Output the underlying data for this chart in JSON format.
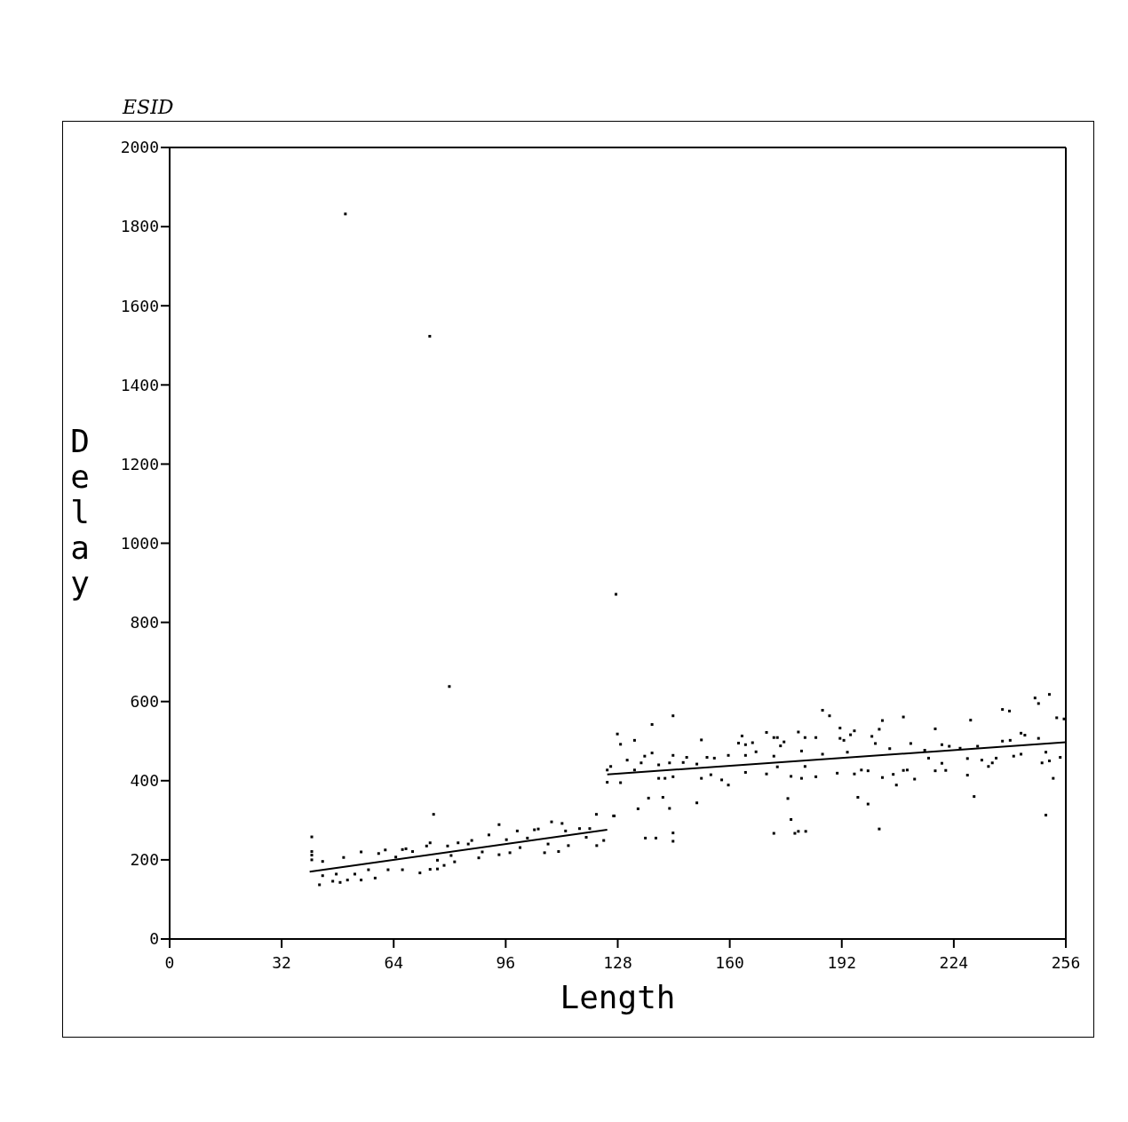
{
  "chart_data": {
    "type": "scatter",
    "title": "ESID",
    "xlabel": "Length",
    "ylabel": "Delay",
    "xlim": [
      0,
      256
    ],
    "ylim": [
      0,
      2000
    ],
    "xticks": [
      0,
      32,
      64,
      96,
      128,
      160,
      192,
      224,
      256
    ],
    "yticks": [
      0,
      200,
      400,
      600,
      800,
      1000,
      1200,
      1400,
      1600,
      1800,
      2000
    ],
    "series": [
      {
        "color": "#000000",
        "marker": "square",
        "x": [
          40.6,
          40.6,
          40.6,
          40.6,
          42.8,
          43.7,
          43.7,
          46.6,
          47.6,
          48.7,
          49.7,
          50.8,
          52.9,
          54.7,
          54.7,
          56.8,
          58.7,
          59.7,
          61.6,
          62.4,
          64.6,
          66.5,
          66.5,
          67.5,
          69.4,
          71.5,
          73.4,
          74.4,
          75.4,
          74.4,
          76.5,
          76.5,
          78.4,
          79.4,
          80.4,
          81.4,
          82.4,
          85.3,
          86.3,
          88.3,
          89.3,
          91.2,
          94.1,
          94.1,
          96.2,
          97.2,
          99.3,
          100.1,
          102.2,
          104.2,
          105.3,
          107.1,
          108.1,
          109.1,
          111.1,
          112.1,
          113.1,
          113.9,
          117.1,
          119.0,
          120.0,
          121.9,
          122.0,
          124.0,
          126.8,
          125.0,
          125.0,
          126.0,
          127.9,
          128.8,
          128.8,
          127.0,
          130.7,
          132.8,
          132.8,
          133.8,
          134.7,
          135.7,
          135.9,
          136.8,
          137.8,
          137.8,
          138.9,
          139.7,
          139.7,
          140.9,
          141.5,
          142.8,
          142.8,
          143.8,
          143.8,
          143.8,
          143.8,
          143.8,
          146.7,
          147.7,
          150.6,
          150.6,
          151.9,
          151.9,
          153.5,
          154.6,
          155.6,
          157.7,
          159.6,
          159.6,
          162.5,
          163.5,
          164.5,
          164.5,
          164.5,
          166.5,
          167.5,
          170.5,
          170.5,
          172.6,
          172.6,
          172.6,
          173.6,
          173.6,
          174.5,
          175.5,
          176.6,
          177.5,
          177.5,
          178.6,
          179.6,
          179.6,
          180.5,
          180.5,
          181.5,
          181.5,
          181.7,
          184.6,
          184.6,
          186.5,
          186.5,
          188.5,
          190.7,
          191.5,
          191.5,
          192.6,
          193.6,
          194.5,
          195.6,
          195.6,
          196.6,
          197.6,
          199.5,
          199.5,
          200.6,
          201.6,
          202.7,
          202.7,
          203.6,
          203.6,
          205.7,
          206.7,
          207.6,
          209.6,
          209.6,
          210.7,
          211.7,
          212.8,
          215.7,
          216.8,
          218.7,
          218.7,
          220.6,
          220.6,
          221.7,
          222.7,
          225.8,
          227.9,
          227.9,
          228.8,
          229.8,
          230.8,
          232.0,
          233.9,
          235.0,
          236.1,
          237.9,
          237.9,
          239.9,
          240.1,
          241.1,
          243.2,
          243.2,
          244.3,
          247.2,
          248.2,
          248.2,
          249.2,
          250.3,
          250.3,
          251.3,
          251.3,
          252.4,
          253.4,
          254.4,
          255.5,
          50.2,
          74.3,
          79.9,
          127.5
        ],
        "values": [
          258,
          221,
          212,
          200,
          137,
          196,
          160,
          146,
          164,
          143,
          206,
          149,
          164,
          220,
          149,
          175,
          154,
          216,
          225,
          175,
          207,
          175,
          226,
          228,
          221,
          167,
          235,
          243,
          315,
          176,
          177,
          199,
          186,
          235,
          211,
          195,
          243,
          240,
          249,
          205,
          220,
          263,
          289,
          213,
          251,
          218,
          273,
          231,
          255,
          276,
          278,
          218,
          240,
          296,
          221,
          292,
          273,
          236,
          279,
          257,
          279,
          315,
          236,
          249,
          311,
          427,
          396,
          436,
          518,
          492,
          395,
          311,
          452,
          502,
          427,
          329,
          445,
          462,
          255,
          356,
          542,
          470,
          255,
          440,
          406,
          358,
          406,
          445,
          330,
          564,
          464,
          268,
          247,
          410,
          446,
          459,
          442,
          344,
          503,
          406,
          459,
          415,
          457,
          402,
          389,
          464,
          495,
          513,
          491,
          464,
          421,
          496,
          473,
          522,
          417,
          509,
          462,
          267,
          509,
          435,
          488,
          498,
          355,
          411,
          302,
          267,
          523,
          272,
          475,
          406,
          509,
          436,
          272,
          509,
          410,
          578,
          467,
          564,
          419,
          533,
          507,
          502,
          472,
          516,
          526,
          417,
          358,
          427,
          341,
          425,
          512,
          494,
          278,
          530,
          552,
          408,
          481,
          416,
          389,
          561,
          426,
          427,
          494,
          404,
          477,
          457,
          531,
          425,
          491,
          444,
          426,
          487,
          482,
          456,
          414,
          553,
          360,
          487,
          452,
          436,
          445,
          457,
          580,
          500,
          576,
          502,
          462,
          520,
          467,
          515,
          609,
          595,
          507,
          445,
          313,
          472,
          618,
          450,
          406,
          559,
          459,
          556,
          1832,
          1523,
          638,
          871
        ]
      },
      {
        "type": "line",
        "color": "#000000",
        "x": [
          40,
          125
        ],
        "values": [
          170,
          276
        ]
      },
      {
        "type": "line",
        "color": "#000000",
        "x": [
          125,
          256
        ],
        "values": [
          416,
          497
        ]
      }
    ]
  }
}
